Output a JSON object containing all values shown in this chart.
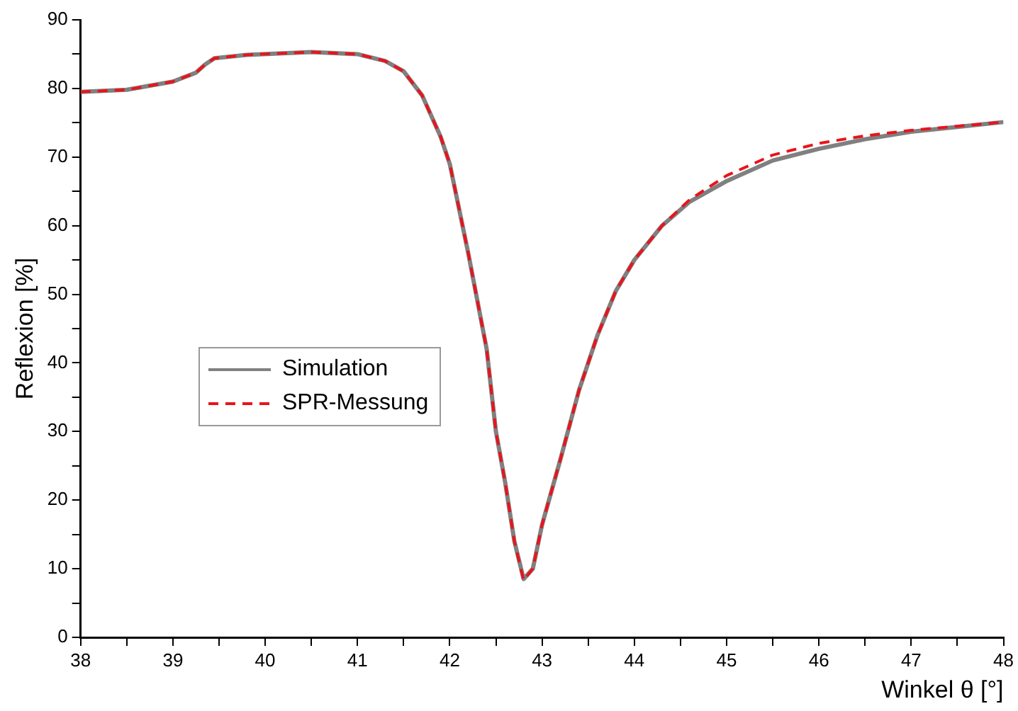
{
  "chart_data": {
    "type": "line",
    "xlabel": "Winkel θ [°]",
    "ylabel": "Reflexion [%]",
    "xlim": [
      38,
      48
    ],
    "ylim": [
      0,
      90
    ],
    "xticks": [
      38,
      {
        "value": 38.5,
        "label": null
      },
      39,
      {
        "value": 39.5,
        "label": null
      },
      40,
      {
        "value": 40.5,
        "label": null
      },
      41,
      {
        "value": 41.5,
        "label": null
      },
      42,
      {
        "value": 42.5,
        "label": null
      },
      43,
      {
        "value": 43.5,
        "label": null
      },
      44,
      {
        "value": 44.5,
        "label": null
      },
      45,
      {
        "value": 45.5,
        "label": null
      },
      46,
      {
        "value": 46.5,
        "label": null
      },
      47,
      {
        "value": 47.5,
        "label": null
      },
      48
    ],
    "yticks": [
      0,
      {
        "value": 5,
        "label": null
      },
      10,
      {
        "value": 15,
        "label": null
      },
      20,
      {
        "value": 25,
        "label": null
      },
      30,
      {
        "value": 35,
        "label": null
      },
      40,
      {
        "value": 45,
        "label": null
      },
      50,
      {
        "value": 55,
        "label": null
      },
      60,
      {
        "value": 65,
        "label": null
      },
      70,
      {
        "value": 75,
        "label": null
      },
      80,
      {
        "value": 85,
        "label": null
      },
      90
    ],
    "grid": false,
    "legend": "left",
    "marker": "none",
    "x": [
      38,
      38.5,
      39,
      39.25,
      39.35,
      39.45,
      39.8,
      40.5,
      41,
      41.3,
      41.5,
      41.7,
      41.9,
      42,
      42.2,
      42.4,
      42.5,
      42.6,
      42.7,
      42.8,
      42.9,
      43,
      43.2,
      43.4,
      43.6,
      43.8,
      44,
      44.3,
      44.6,
      45,
      45.5,
      46,
      46.5,
      47,
      47.5,
      48
    ],
    "series": [
      {
        "name": "Simulation",
        "color": "#808080",
        "line_style": "solid",
        "values": [
          79.5,
          79.8,
          81,
          82.3,
          83.5,
          84.4,
          84.9,
          85.3,
          85,
          84,
          82.5,
          79,
          73,
          69,
          56,
          42,
          30,
          22.6,
          14,
          8.5,
          10,
          16.4,
          26,
          36,
          44,
          50.5,
          55,
          60,
          63.5,
          66.5,
          69.5,
          71.2,
          72.6,
          73.7,
          74.4,
          75.1
        ]
      },
      {
        "name": "SPR-Messung",
        "color": "#e8141c",
        "line_style": "dashed",
        "values": [
          79.5,
          79.8,
          81,
          82.3,
          83.5,
          84.4,
          84.9,
          85.3,
          85,
          84,
          82.5,
          79,
          73,
          69,
          56,
          42,
          30,
          22.6,
          14,
          8.3,
          10,
          16.4,
          26,
          36,
          44,
          50.5,
          55,
          60,
          63.8,
          67.3,
          70.3,
          72,
          73.1,
          73.9,
          74.5,
          75.1
        ]
      }
    ]
  }
}
